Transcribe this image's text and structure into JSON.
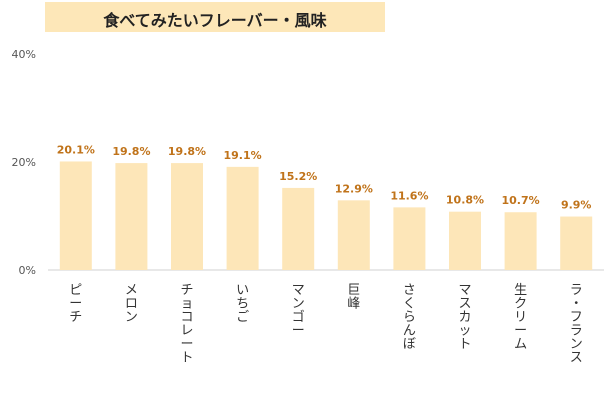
{
  "chart_data": {
    "type": "bar",
    "title": "食べてみたいフレーバー・風味",
    "categories": [
      "ピーチ",
      "メロン",
      "チョコレート",
      "いちご",
      "マンゴー",
      "巨峰",
      "さくらんぼ",
      "マスカット",
      "生クリーム",
      "ラ・フランス"
    ],
    "values": [
      20.1,
      19.8,
      19.8,
      19.1,
      15.2,
      12.9,
      11.6,
      10.8,
      10.7,
      9.9
    ],
    "data_labels": [
      "20.1%",
      "19.8%",
      "19.8%",
      "19.1%",
      "15.2%",
      "12.9%",
      "11.6%",
      "10.8%",
      "10.7%",
      "9.9%"
    ],
    "y_ticks": [
      "0%",
      "20%",
      "40%"
    ],
    "y_tick_values": [
      0,
      20,
      40
    ],
    "ylim": [
      0,
      40
    ],
    "grid": false,
    "xlabel": "",
    "ylabel": "",
    "colors": {
      "bar": "#fde6b8",
      "label": "#c0731a",
      "axis": "#d0d0d0",
      "tick_text": "#555555"
    }
  }
}
